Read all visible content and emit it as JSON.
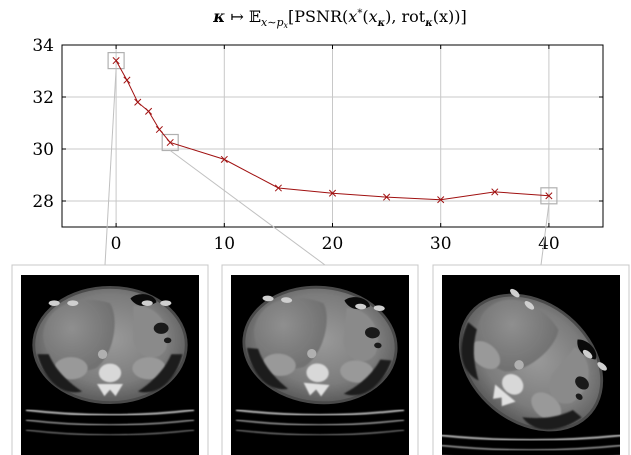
{
  "chart_data": {
    "type": "line",
    "title_parts": {
      "kappa": "κ",
      "mapsto": " ↦ ",
      "expectation": "𝔼",
      "subscript": "x∼p",
      "subscript_sub": "x",
      "open": "[PSNR(",
      "xstar": "x",
      "star": "*",
      "paren_open": "(",
      "xk": "x",
      "k_sub": "κ",
      "mid": "), rot",
      "rot_sub": "κ",
      "tail": "(x))]"
    },
    "x": [
      0,
      1,
      2,
      3,
      4,
      5,
      10,
      15,
      20,
      25,
      30,
      35,
      40
    ],
    "y": [
      33.4,
      32.65,
      31.8,
      31.45,
      30.75,
      30.25,
      29.6,
      28.5,
      28.3,
      28.15,
      28.05,
      28.35,
      28.2
    ],
    "xlim": [
      -5,
      45
    ],
    "ylim": [
      27,
      34
    ],
    "xticks": [
      0,
      10,
      20,
      30,
      40
    ],
    "yticks": [
      28,
      30,
      32,
      34
    ],
    "grid": true,
    "line_color": "#a01010",
    "marker": "x",
    "highlighted_x": [
      0,
      5,
      40
    ],
    "highlight_color": "#b0b0b0"
  },
  "thumbnails": [
    {
      "name": "ct-slice-kappa-0",
      "linked_x": 0,
      "rotation": 0
    },
    {
      "name": "ct-slice-kappa-5",
      "linked_x": 5,
      "rotation": 5
    },
    {
      "name": "ct-slice-kappa-40",
      "linked_x": 40,
      "rotation": 40
    }
  ]
}
